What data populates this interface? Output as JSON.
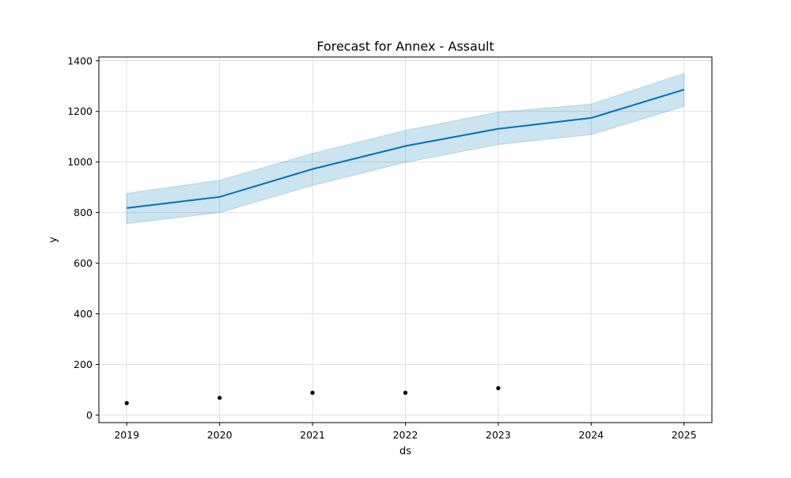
{
  "chart_data": {
    "type": "line",
    "title": "Forecast for Annex - Assault",
    "xlabel": "ds",
    "ylabel": "y",
    "x_ticks": [
      "2019",
      "2020",
      "2021",
      "2022",
      "2023",
      "2024",
      "2025"
    ],
    "y_ticks": [
      0,
      200,
      400,
      600,
      800,
      1000,
      1200,
      1400
    ],
    "xlim": [
      2018.7,
      2025.3
    ],
    "ylim": [
      -30,
      1415
    ],
    "grid": true,
    "series": [
      {
        "kind": "forecast-line",
        "color": "#0072b2",
        "x": [
          2019,
          2020,
          2021,
          2022,
          2023,
          2024,
          2025
        ],
        "y": [
          818,
          862,
          972,
          1063,
          1131,
          1174,
          1286
        ]
      },
      {
        "kind": "uncertainty-band",
        "color": "#0072b2",
        "x": [
          2019,
          2020,
          2021,
          2022,
          2023,
          2024,
          2025
        ],
        "lower": [
          756,
          800,
          907,
          998,
          1069,
          1108,
          1220
        ],
        "upper": [
          876,
          928,
          1034,
          1125,
          1197,
          1229,
          1350
        ]
      },
      {
        "kind": "observed-points",
        "color": "#000000",
        "x": [
          2019,
          2020,
          2021,
          2022,
          2023
        ],
        "y": [
          47,
          68,
          88,
          88,
          106
        ]
      }
    ]
  }
}
